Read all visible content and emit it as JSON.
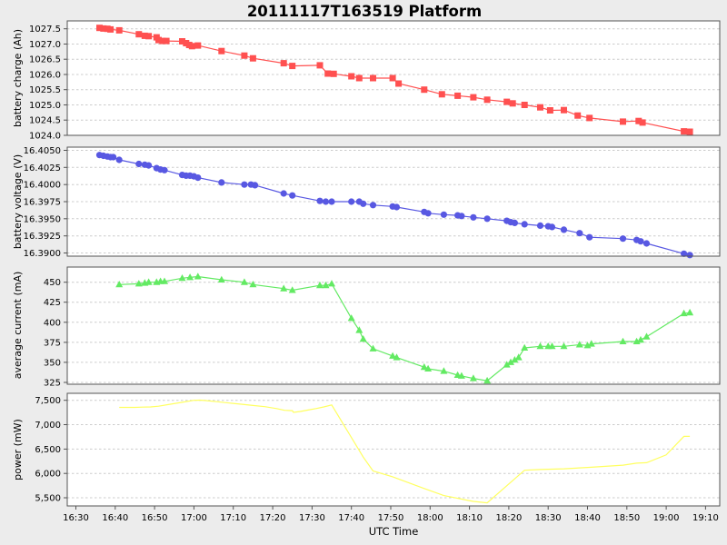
{
  "figure": {
    "background": "#ececec",
    "plot_background": "#ffffff",
    "grid_color": "#cccccc",
    "frame_color": "#555555",
    "text_color": "#000000"
  },
  "chart_data": {
    "type": "line",
    "title": "20111117T163519 Platform",
    "xlabel": "UTC Time",
    "x_unit": "minutes after 16:30 UTC",
    "x_tick_labels": [
      "16:30",
      "16:40",
      "16:50",
      "17:00",
      "17:10",
      "17:20",
      "17:30",
      "17:40",
      "17:50",
      "18:00",
      "18:10",
      "18:20",
      "18:30",
      "18:40",
      "18:50",
      "19:00",
      "19:10"
    ],
    "x_tick_minutes": [
      0,
      10,
      20,
      30,
      40,
      50,
      60,
      70,
      80,
      90,
      100,
      110,
      120,
      130,
      140,
      150,
      160
    ],
    "xlim_minutes": [
      -2.2,
      163.6
    ],
    "grid": "horizontal-dashed",
    "legend": "none",
    "subplots": [
      {
        "id": "battery-charge",
        "ylabel": "battery charge (Ah)",
        "color": "#ff5050",
        "marker": "square",
        "ylim": [
          1024.0,
          1027.76
        ],
        "yticks": [
          1027.5,
          1027.0,
          1026.5,
          1026.0,
          1025.5,
          1025.0,
          1024.5,
          1024.0
        ],
        "ytick_labels": [
          "1027.5",
          "1027.0",
          "1026.5",
          "1026.0",
          "1025.5",
          "1025.0",
          "1024.5",
          "1024.0"
        ],
        "points": [
          [
            6,
            1027.53
          ],
          [
            7,
            1027.51
          ],
          [
            8,
            1027.5
          ],
          [
            8.8,
            1027.48
          ],
          [
            11,
            1027.45
          ],
          [
            16,
            1027.32
          ],
          [
            17.5,
            1027.27
          ],
          [
            18.5,
            1027.26
          ],
          [
            20.5,
            1027.22
          ],
          [
            21,
            1027.13
          ],
          [
            22,
            1027.1
          ],
          [
            23,
            1027.1
          ],
          [
            27,
            1027.09
          ],
          [
            28,
            1027.03
          ],
          [
            28.8,
            1026.97
          ],
          [
            29.5,
            1026.93
          ],
          [
            31,
            1026.95
          ],
          [
            37,
            1026.77
          ],
          [
            42.8,
            1026.62
          ],
          [
            45,
            1026.53
          ],
          [
            52.8,
            1026.37
          ],
          [
            55,
            1026.28
          ],
          [
            62,
            1026.3
          ],
          [
            64,
            1026.03
          ],
          [
            65.5,
            1026.02
          ],
          [
            70,
            1025.94
          ],
          [
            72,
            1025.88
          ],
          [
            75.5,
            1025.88
          ],
          [
            80.5,
            1025.88
          ],
          [
            82,
            1025.7
          ],
          [
            88.5,
            1025.5
          ],
          [
            93,
            1025.35
          ],
          [
            97,
            1025.3
          ],
          [
            101,
            1025.25
          ],
          [
            104.5,
            1025.17
          ],
          [
            109.5,
            1025.1
          ],
          [
            111,
            1025.05
          ],
          [
            114,
            1025.0
          ],
          [
            118,
            1024.92
          ],
          [
            120.5,
            1024.82
          ],
          [
            124,
            1024.83
          ],
          [
            127.5,
            1024.65
          ],
          [
            130.5,
            1024.57
          ],
          [
            139,
            1024.45
          ],
          [
            143,
            1024.47
          ],
          [
            144,
            1024.42
          ],
          [
            154.5,
            1024.13
          ],
          [
            156,
            1024.12
          ]
        ]
      },
      {
        "id": "battery-voltage",
        "ylabel": "battery voltage (V)",
        "color": "#5858e2",
        "marker": "circle",
        "ylim": [
          16.38954,
          16.40546
        ],
        "yticks": [
          16.405,
          16.4025,
          16.4,
          16.3975,
          16.395,
          16.3925,
          16.39
        ],
        "ytick_labels": [
          "16.4050",
          "16.4025",
          "16.4000",
          "16.3975",
          "16.3950",
          "16.3925",
          "16.3900"
        ],
        "points": [
          [
            6,
            16.4043
          ],
          [
            7,
            16.4042
          ],
          [
            8,
            16.4041
          ],
          [
            8.8,
            16.404
          ],
          [
            9.5,
            16.404
          ],
          [
            11,
            16.4036
          ],
          [
            16,
            16.403
          ],
          [
            17.5,
            16.4029
          ],
          [
            18.5,
            16.4028
          ],
          [
            20.5,
            16.4024
          ],
          [
            21.5,
            16.4022
          ],
          [
            22.5,
            16.4021
          ],
          [
            27,
            16.4014
          ],
          [
            28,
            16.4013
          ],
          [
            29,
            16.4013
          ],
          [
            30,
            16.4012
          ],
          [
            31,
            16.401
          ],
          [
            37,
            16.4003
          ],
          [
            42.8,
            16.4
          ],
          [
            44.5,
            16.4
          ],
          [
            45.5,
            16.3999
          ],
          [
            52.8,
            16.3987
          ],
          [
            55,
            16.3984
          ],
          [
            62,
            16.3976
          ],
          [
            63.5,
            16.3975
          ],
          [
            65,
            16.3975
          ],
          [
            70,
            16.3975
          ],
          [
            72,
            16.3975
          ],
          [
            73,
            16.3972
          ],
          [
            75.5,
            16.397
          ],
          [
            80.5,
            16.3968
          ],
          [
            81.5,
            16.3967
          ],
          [
            88.5,
            16.396
          ],
          [
            89.5,
            16.3958
          ],
          [
            93.5,
            16.3956
          ],
          [
            97,
            16.3955
          ],
          [
            98,
            16.3954
          ],
          [
            101,
            16.3952
          ],
          [
            104.5,
            16.395
          ],
          [
            109.5,
            16.3947
          ],
          [
            110.5,
            16.3945
          ],
          [
            111.5,
            16.3944
          ],
          [
            114,
            16.3942
          ],
          [
            118,
            16.394
          ],
          [
            120,
            16.3939
          ],
          [
            121,
            16.3938
          ],
          [
            124,
            16.3934
          ],
          [
            128,
            16.3929
          ],
          [
            130.5,
            16.3923
          ],
          [
            139,
            16.3921
          ],
          [
            142.5,
            16.3919
          ],
          [
            143.5,
            16.3917
          ],
          [
            145,
            16.3914
          ],
          [
            154.5,
            16.3899
          ],
          [
            156,
            16.3897
          ]
        ]
      },
      {
        "id": "average-current",
        "ylabel": "average current (mA)",
        "color": "#63ea63",
        "marker": "triangle",
        "ylim": [
          322.7,
          468.9
        ],
        "yticks": [
          450,
          425,
          400,
          375,
          350,
          325
        ],
        "ytick_labels": [
          "450",
          "425",
          "400",
          "375",
          "350",
          "325"
        ],
        "points": [
          [
            11,
            447
          ],
          [
            16,
            448
          ],
          [
            17.5,
            449
          ],
          [
            18.5,
            450
          ],
          [
            20.5,
            450
          ],
          [
            21.5,
            451
          ],
          [
            22.5,
            451
          ],
          [
            27,
            455
          ],
          [
            29,
            456
          ],
          [
            31,
            457
          ],
          [
            37,
            453
          ],
          [
            42.8,
            450
          ],
          [
            45,
            447
          ],
          [
            52.8,
            442
          ],
          [
            55,
            440
          ],
          [
            62,
            446
          ],
          [
            63.5,
            446
          ],
          [
            65,
            448
          ],
          [
            70,
            405
          ],
          [
            72,
            390
          ],
          [
            73,
            379
          ],
          [
            75.5,
            367
          ],
          [
            80.5,
            358
          ],
          [
            81.5,
            356
          ],
          [
            88.5,
            344
          ],
          [
            89.5,
            342
          ],
          [
            93.5,
            339
          ],
          [
            97,
            334
          ],
          [
            98,
            333
          ],
          [
            101,
            330
          ],
          [
            104.5,
            327
          ],
          [
            109.5,
            347
          ],
          [
            110.5,
            350
          ],
          [
            111.5,
            353
          ],
          [
            112.5,
            356
          ],
          [
            114,
            368
          ],
          [
            118,
            370
          ],
          [
            120,
            370
          ],
          [
            121,
            370
          ],
          [
            124,
            370
          ],
          [
            128,
            372
          ],
          [
            130,
            371
          ],
          [
            131,
            373
          ],
          [
            139,
            376
          ],
          [
            142.5,
            376
          ],
          [
            143.5,
            378
          ],
          [
            145,
            382
          ],
          [
            154.5,
            411
          ],
          [
            156,
            412
          ]
        ]
      },
      {
        "id": "power",
        "ylabel": "power (mW)",
        "color": "#ffff60",
        "marker": "none",
        "ylim": [
          5332,
          7644
        ],
        "yticks": [
          7500,
          7000,
          6500,
          6000,
          5500
        ],
        "ytick_labels": [
          "7,500",
          "7,000",
          "6,500",
          "6,000",
          "5,500"
        ],
        "points": [
          [
            11,
            7355
          ],
          [
            13,
            7355
          ],
          [
            15,
            7355
          ],
          [
            17,
            7360
          ],
          [
            19,
            7365
          ],
          [
            21,
            7380
          ],
          [
            24,
            7420
          ],
          [
            27,
            7460
          ],
          [
            30,
            7500
          ],
          [
            31.5,
            7505
          ],
          [
            33,
            7495
          ],
          [
            36,
            7470
          ],
          [
            39,
            7445
          ],
          [
            42,
            7420
          ],
          [
            45,
            7395
          ],
          [
            48,
            7370
          ],
          [
            51,
            7330
          ],
          [
            53,
            7295
          ],
          [
            55,
            7287
          ],
          [
            55.3,
            7252
          ],
          [
            57,
            7272
          ],
          [
            59,
            7300
          ],
          [
            61,
            7330
          ],
          [
            63,
            7365
          ],
          [
            65,
            7405
          ],
          [
            73,
            6335
          ],
          [
            75.5,
            6050
          ],
          [
            80.5,
            5930
          ],
          [
            88.5,
            5690
          ],
          [
            93.5,
            5545
          ],
          [
            101,
            5425
          ],
          [
            104.5,
            5395
          ],
          [
            114,
            6065
          ],
          [
            118,
            6080
          ],
          [
            124,
            6095
          ],
          [
            130.5,
            6125
          ],
          [
            139,
            6170
          ],
          [
            142.5,
            6210
          ],
          [
            145,
            6220
          ],
          [
            150,
            6380
          ],
          [
            154.5,
            6760
          ],
          [
            156,
            6760
          ]
        ]
      }
    ]
  }
}
